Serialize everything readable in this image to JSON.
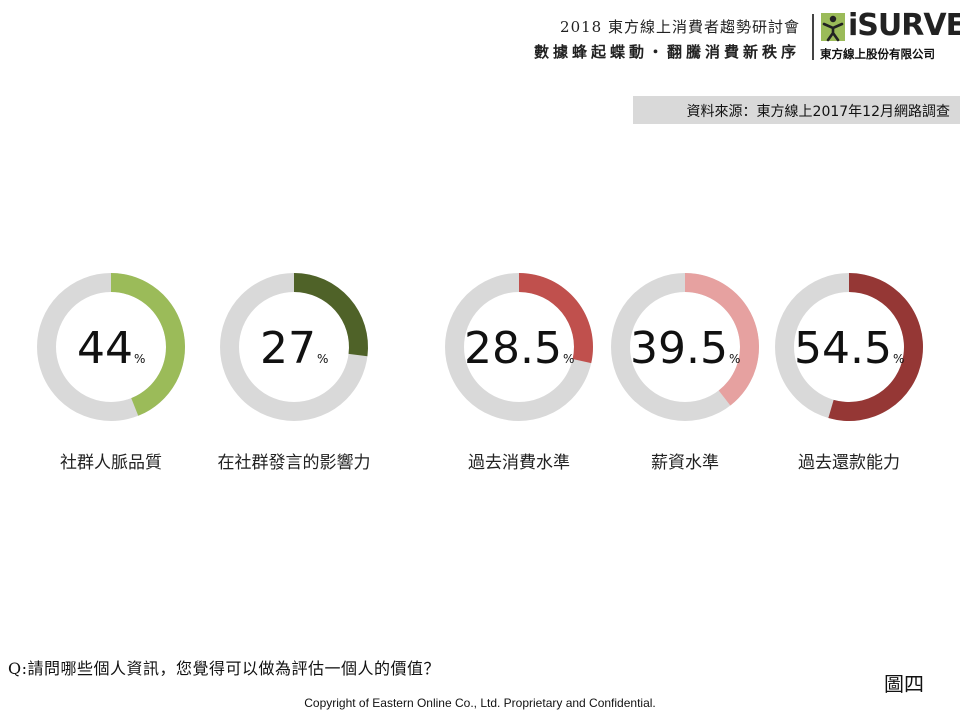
{
  "header": {
    "conference_title": "2018 東方線上消費者趨勢研討會",
    "conference_subtitle": "數據蜂起蝶動・翻騰消費新秩序",
    "logo_word": "iSURVEY",
    "company": "東方線上股份有限公司"
  },
  "source_note": "資料來源：東方線上2017年12月網路調查",
  "chart_data": {
    "type": "donut",
    "unit": "%",
    "max": 100,
    "categories": [
      "社群人脈品質",
      "在社群發言的影響力",
      "過去消費水準",
      "薪資水準",
      "過去還款能力"
    ],
    "values": [
      44,
      27,
      28.5,
      39.5,
      54.5
    ],
    "colors": [
      "#9bbb59",
      "#4f6228",
      "#c0504d",
      "#e6a1a0",
      "#953735"
    ],
    "track_color": "#d9d9d9"
  },
  "question": "Q:請問哪些個人資訊，您覺得可以做為評估一個人的價值？",
  "figure_label": "圖四",
  "copyright": "Copyright of Eastern Online  Co., Ltd. Proprietary and Confidential."
}
